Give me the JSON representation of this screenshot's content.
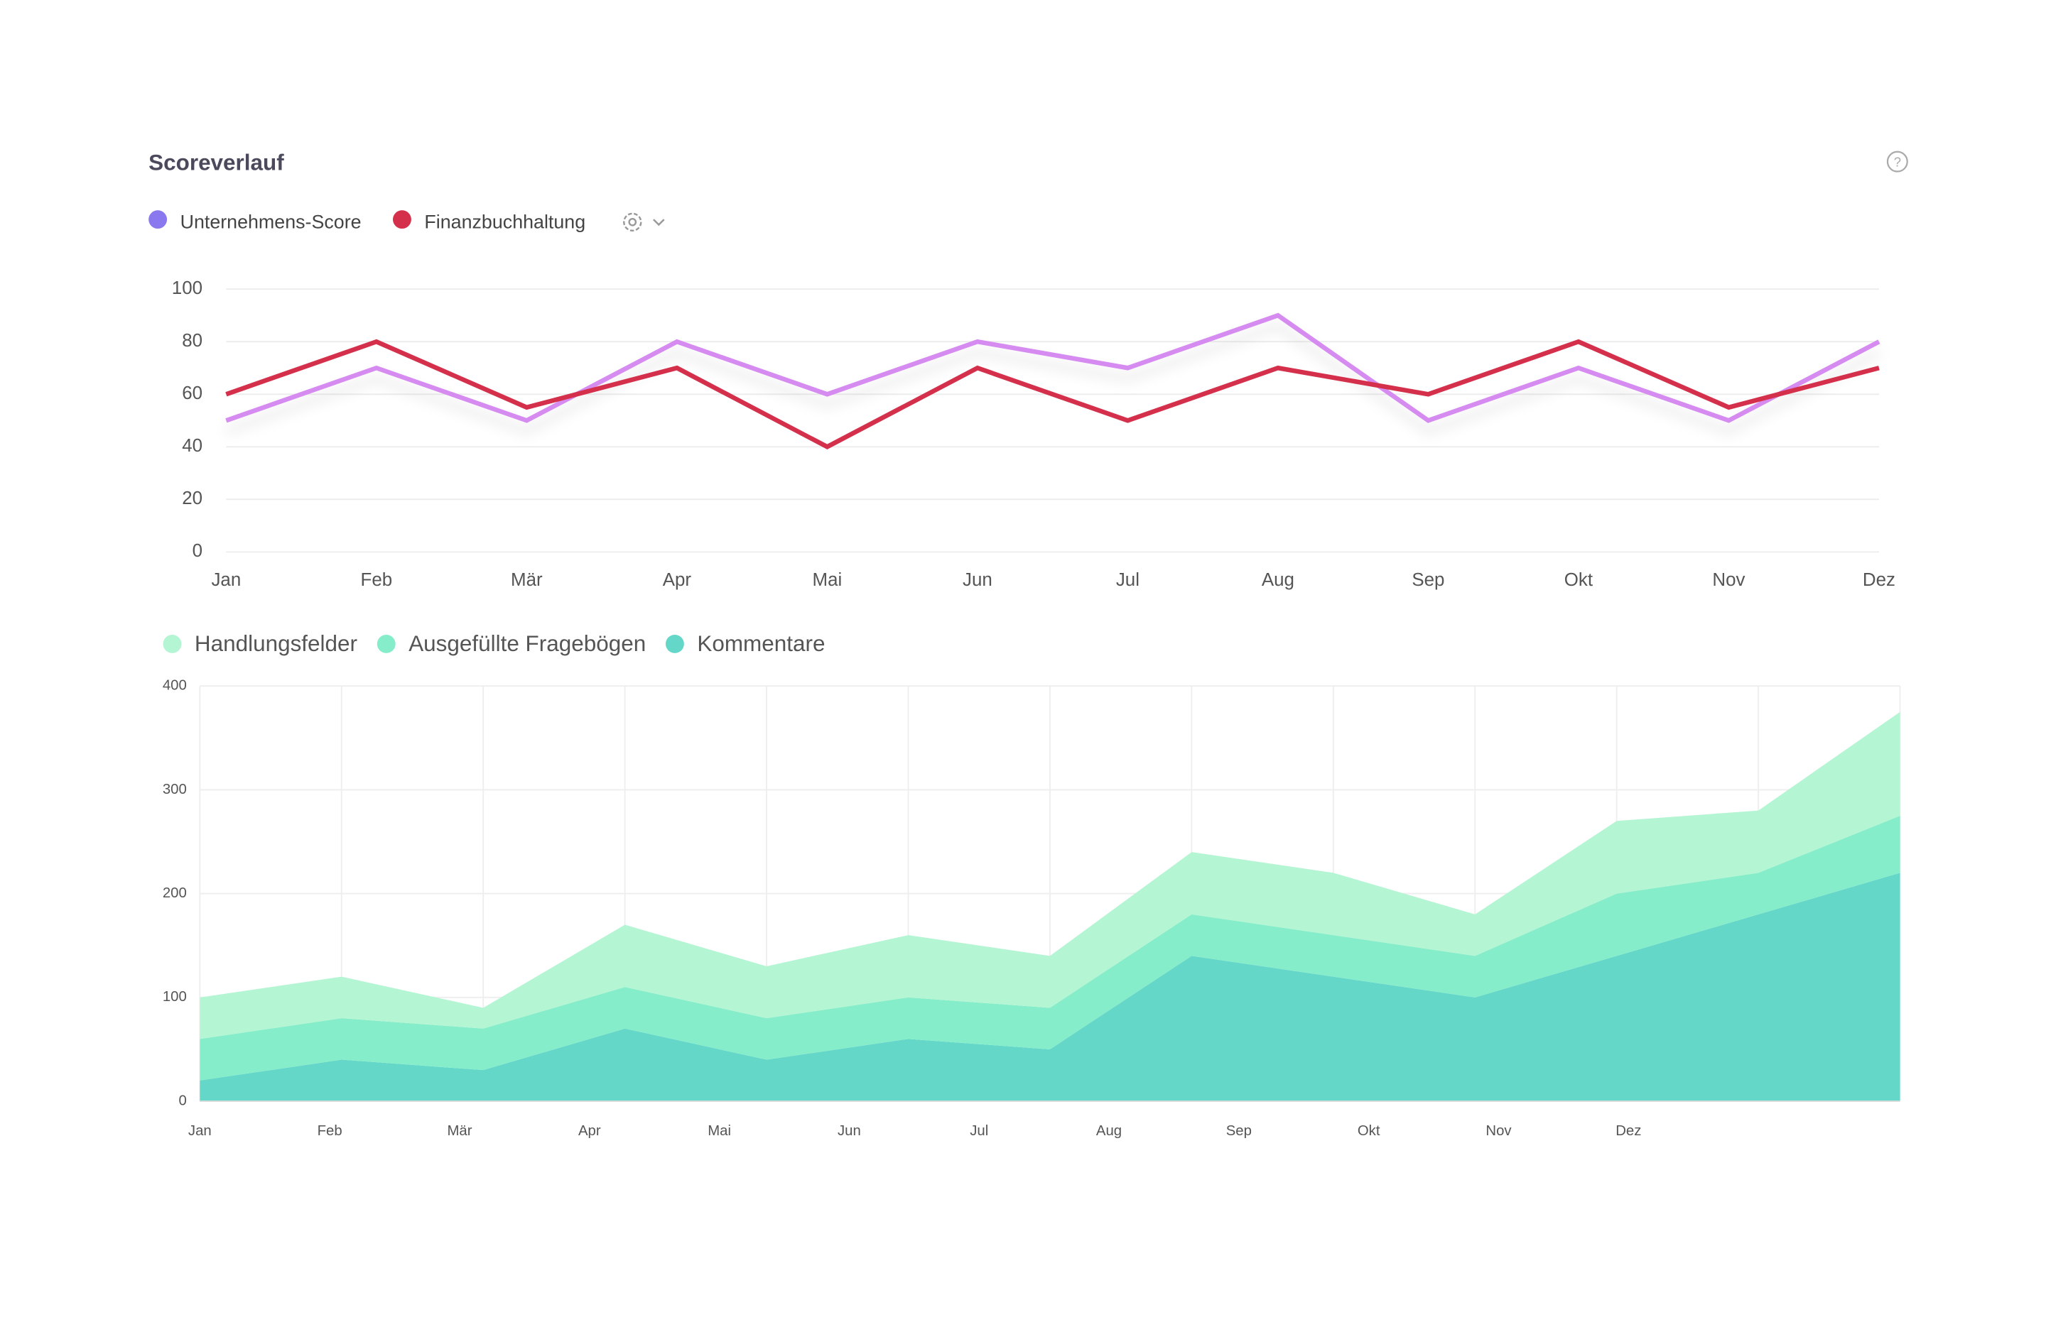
{
  "header": {
    "title": "Scoreverlauf"
  },
  "chart_data": [
    {
      "type": "line",
      "legend_position": "top-left",
      "grid": true,
      "categories": [
        "Jan",
        "Feb",
        "Mär",
        "Apr",
        "Mai",
        "Jun",
        "Jul",
        "Aug",
        "Sep",
        "Okt",
        "Nov",
        "Dez"
      ],
      "series": [
        {
          "name": "Unternehmens-Score",
          "color": "#d58bf0",
          "legend_color": "#8a78ee",
          "values": [
            50,
            70,
            50,
            80,
            60,
            80,
            70,
            90,
            50,
            70,
            50,
            80
          ]
        },
        {
          "name": "Finanzbuchhaltung",
          "color": "#d4304b",
          "legend_color": "#d4304b",
          "values": [
            60,
            80,
            55,
            70,
            40,
            70,
            50,
            70,
            60,
            80,
            55,
            70
          ]
        }
      ],
      "ylim": [
        0,
        100
      ],
      "yticks": [
        0,
        20,
        40,
        60,
        80,
        100
      ]
    },
    {
      "type": "stacked-area",
      "legend_position": "top-left",
      "grid": true,
      "categories": [
        "Jan",
        "Feb",
        "Mär",
        "Apr",
        "Mai",
        "Jun",
        "Jul",
        "Aug",
        "Sep",
        "Okt",
        "Nov",
        "Dez",
        null
      ],
      "series": [
        {
          "name": "Handlungsfelder",
          "color": "#b4f5d3",
          "values": [
            40,
            40,
            20,
            60,
            50,
            60,
            50,
            60,
            60,
            40,
            70,
            60,
            100
          ]
        },
        {
          "name": "Ausgefüllte Fragebögen",
          "color": "#85edc9",
          "values": [
            40,
            40,
            40,
            40,
            40,
            40,
            40,
            40,
            40,
            40,
            60,
            40,
            55
          ]
        },
        {
          "name": "Kommentare",
          "color": "#64d7c9",
          "values": [
            20,
            40,
            30,
            70,
            40,
            60,
            50,
            140,
            120,
            100,
            140,
            180,
            220
          ]
        }
      ],
      "ylim": [
        0,
        400
      ],
      "yticks": [
        0,
        100,
        200,
        300,
        400
      ]
    }
  ]
}
